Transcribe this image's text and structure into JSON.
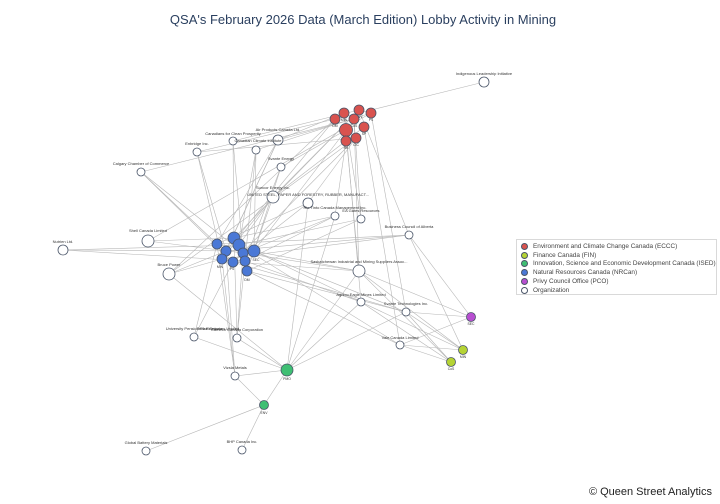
{
  "title": "QSA's February 2026 Data (March Edition) Lobby Activity in Mining",
  "legend": [
    {
      "label": "Environment and Climate Change Canada (ECCC)",
      "color": "#d9534f"
    },
    {
      "label": "Finance Canada (FIN)",
      "color": "#b5d334"
    },
    {
      "label": "Innovation, Science and Economic Development Canada (ISED)",
      "color": "#3fbf73"
    },
    {
      "label": "Natural Resources Canada (NRCan)",
      "color": "#4a78d6"
    },
    {
      "label": "Privy Council Office (PCO)",
      "color": "#b84fd1"
    },
    {
      "label": "Organization",
      "color": "#ffffff"
    }
  ],
  "copyright": "© Queen Street Analytics",
  "organizations": [
    "Indigenous Leadership Initiative",
    "Air Products Canada Ltd.",
    "Canadians for Clean Prosperity",
    "Canadian Climate Institute",
    "Enbridge Inc.",
    "Calgary Chamber of Commerce",
    "Svante Energy",
    "Suncor Energy Inc.",
    "UNITED STEEL, PAPER AND FORESTRY, RUBBER, MANUFACT...",
    "Rio Tinto Canada Management Inc.",
    "EA Gates Resources",
    "Business Council of Alberta",
    "Shell Canada Limited",
    "Nutrien Ltd.",
    "Bruce Power",
    "Saskatchewan Industrial and Mining Suppliers Assoc...",
    "Agnico Eagle Mines Limited",
    "Svante Technologies Inc.",
    "University Pension Plan Ontario",
    "Teck Resources Limited",
    "Cameco Canada Corporation",
    "Vale Canada Limited",
    "Vizsla Metals",
    "Global Battery Materials",
    "BHP Canada Inc."
  ],
  "officials": [
    "MIN",
    "ENV",
    "PS",
    "DM",
    "CoS",
    "ADM",
    "SP",
    "CIC",
    "RK"
  ],
  "extra_labels": [
    "PMO",
    "SEC"
  ],
  "nrcan_labels": [
    "MIN",
    "SEC",
    "PS",
    "DM",
    "ADM"
  ]
}
